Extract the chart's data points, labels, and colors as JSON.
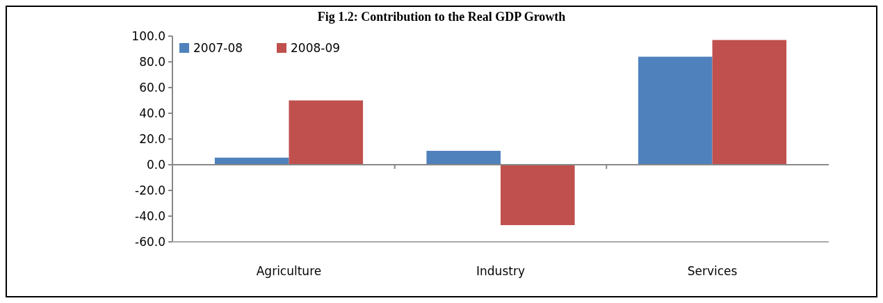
{
  "chart_data": {
    "type": "bar",
    "title": "Fig 1.2: Contribution to the Real GDP Growth",
    "categories": [
      "Agriculture",
      "Industry",
      "Services"
    ],
    "series": [
      {
        "name": "2007-08",
        "color": "#4f81bd",
        "values": [
          5.5,
          10.8,
          84.0
        ]
      },
      {
        "name": "2008-09",
        "color": "#c0504d",
        "values": [
          50.0,
          -47.0,
          97.0
        ]
      }
    ],
    "ylim": [
      -60,
      100
    ],
    "yticks": [
      {
        "value": -60,
        "label": "-60.0"
      },
      {
        "value": -40,
        "label": "-40.0"
      },
      {
        "value": -20,
        "label": "-20.0"
      },
      {
        "value": 0,
        "label": "0.0"
      },
      {
        "value": 20,
        "label": "20.0"
      },
      {
        "value": 40,
        "label": "40.0"
      },
      {
        "value": 60,
        "label": "60.0"
      },
      {
        "value": 80,
        "label": "80.0"
      },
      {
        "value": 100,
        "label": "100.0"
      }
    ],
    "legend": "top left"
  }
}
